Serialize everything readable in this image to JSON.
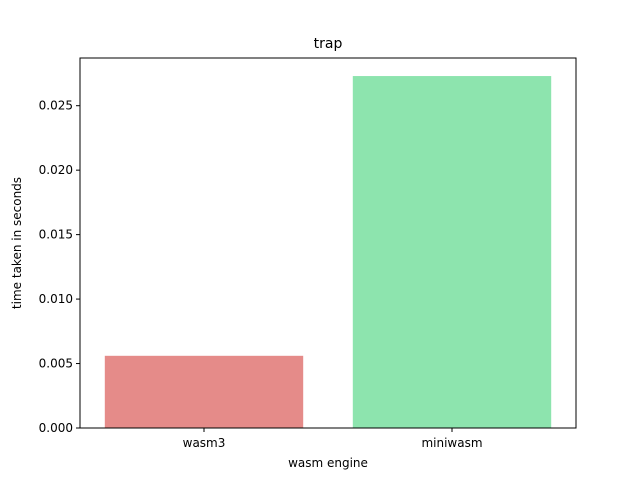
{
  "chart_data": {
    "type": "bar",
    "title": "trap",
    "xlabel": "wasm engine",
    "ylabel": "time taken in seconds",
    "categories": [
      "wasm3",
      "miniwasm"
    ],
    "values": [
      0.0056,
      0.0273
    ],
    "colors": [
      "#e58b89",
      "#8de4ae"
    ],
    "ylim": [
      0,
      0.0287
    ],
    "yticks": [
      0.0,
      0.005,
      0.01,
      0.015,
      0.02,
      0.025
    ],
    "ytick_labels": [
      "0.000",
      "0.005",
      "0.010",
      "0.015",
      "0.020",
      "0.025"
    ],
    "grid": false,
    "legend": "none"
  }
}
